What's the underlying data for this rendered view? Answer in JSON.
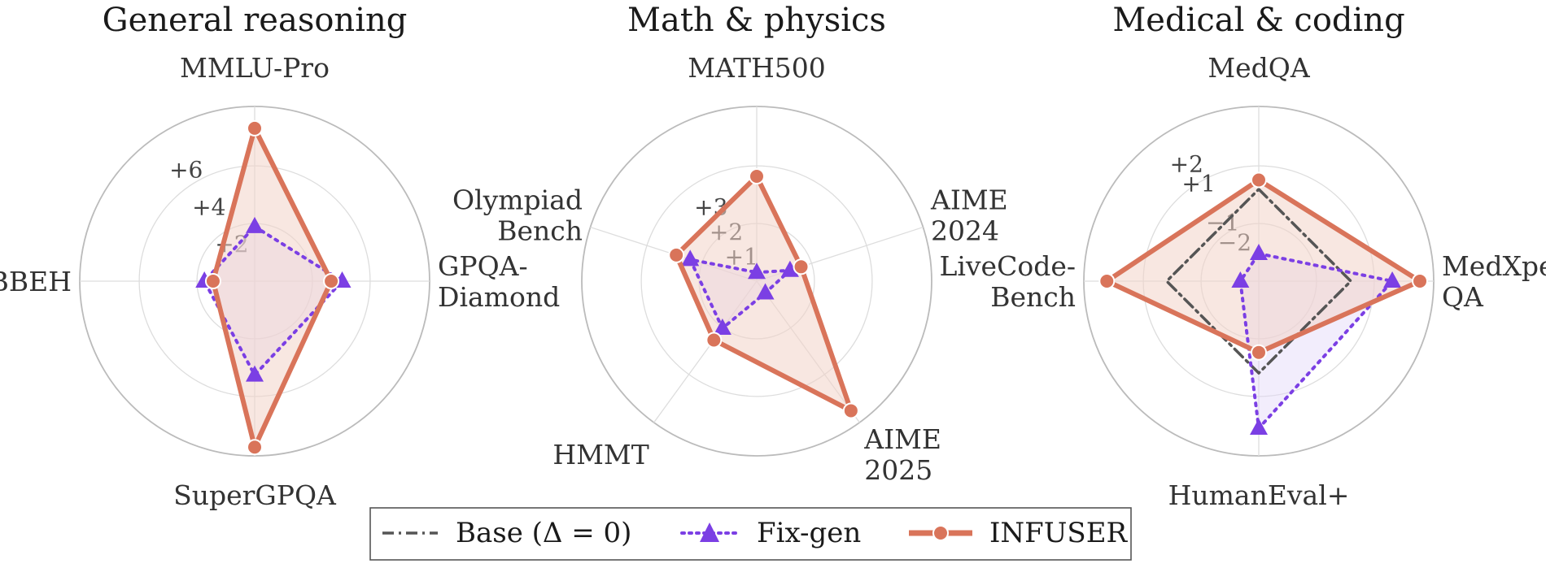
{
  "colors": {
    "base": "#555555",
    "fixgen": "#7b3fe4",
    "infuser": "#d9745a",
    "infuser_fill": "#f3d3c8",
    "fixgen_fill": "#e2d6f8",
    "grid": "#dddddd",
    "outer_ring": "#bbbbbb"
  },
  "legend": {
    "base": "Base (Δ = 0)",
    "fixgen": "Fix-gen",
    "infuser": "INFUSER"
  },
  "chart_data": [
    {
      "type": "radar",
      "title": "General reasoning",
      "axes": [
        "MMLU-Pro",
        "GPQA-\nDiamond",
        "SuperGPQA",
        "BBEH"
      ],
      "tick_labels": [
        "+2",
        "+4",
        "+6"
      ],
      "series": [
        {
          "name": "Base (Δ = 0)",
          "values": [
            0,
            0,
            0,
            0
          ]
        },
        {
          "name": "Fix-gen",
          "values": [
            2.5,
            4.0,
            4.3,
            2.3
          ]
        },
        {
          "name": "INFUSER",
          "values": [
            7.0,
            3.5,
            7.6,
            1.9
          ]
        }
      ]
    },
    {
      "type": "radar",
      "title": "Math & physics",
      "axes": [
        "MATH500",
        "AIME\n2024",
        "AIME\n2025",
        "HMMT",
        "Olympiad\nBench"
      ],
      "tick_labels": [
        "+1",
        "+2",
        "+3"
      ],
      "series": [
        {
          "name": "Base (Δ = 0)",
          "values": [
            0,
            0,
            0,
            0,
            0
          ]
        },
        {
          "name": "Fix-gen",
          "values": [
            0.3,
            1.2,
            0.5,
            2.0,
            2.4
          ]
        },
        {
          "name": "INFUSER",
          "values": [
            3.6,
            1.6,
            5.5,
            2.5,
            2.9
          ]
        }
      ]
    },
    {
      "type": "radar",
      "title": "Medical & coding",
      "axes": [
        "MedQA",
        "MedXpert-\nQA",
        "HumanEval+",
        "LiveCode-\nBench"
      ],
      "tick_labels": [
        "−2",
        "−1",
        "+1",
        "+2"
      ],
      "series": [
        {
          "name": "Base (Δ = 0)",
          "values": [
            0,
            0,
            0,
            0
          ]
        },
        {
          "name": "Fix-gen",
          "values": [
            -2.8,
            1.8,
            2.4,
            -3.2
          ]
        },
        {
          "name": "INFUSER",
          "values": [
            0.4,
            3.0,
            -0.9,
            2.6
          ]
        }
      ]
    }
  ]
}
